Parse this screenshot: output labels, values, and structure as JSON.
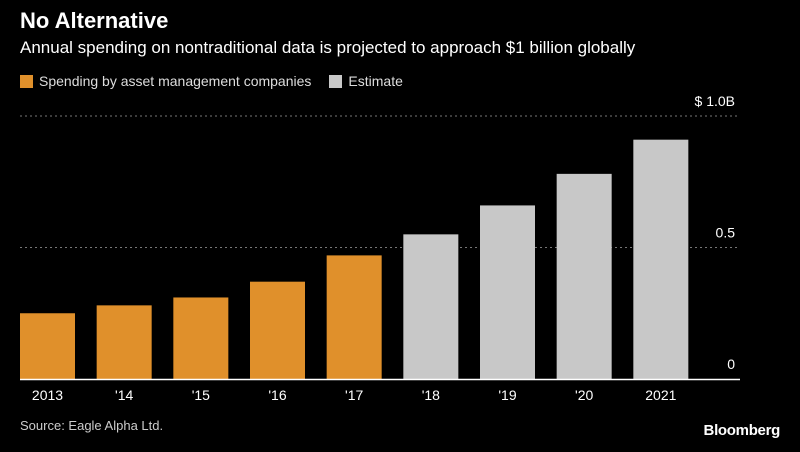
{
  "header": {
    "title": "No Alternative",
    "subtitle": "Annual spending on nontraditional data is projected to approach $1 billion globally"
  },
  "legend": [
    {
      "label": "Spending by asset management companies",
      "color": "#e0902b"
    },
    {
      "label": "Estimate",
      "color": "#c8c8c8"
    }
  ],
  "footer": {
    "source": "Source: Eagle Alpha Ltd.",
    "brand": "Bloomberg"
  },
  "chart_data": {
    "type": "bar",
    "categories": [
      "2013",
      "'14",
      "'15",
      "'16",
      "'17",
      "'18",
      "'19",
      "'20",
      "2021"
    ],
    "values": [
      0.25,
      0.28,
      0.31,
      0.37,
      0.47,
      0.55,
      0.66,
      0.78,
      0.91
    ],
    "estimate": [
      false,
      false,
      false,
      false,
      false,
      true,
      true,
      true,
      true
    ],
    "ylim": [
      0,
      1.0
    ],
    "yticks": [
      {
        "value": 0,
        "label": "0"
      },
      {
        "value": 0.5,
        "label": "0.5"
      },
      {
        "value": 1.0,
        "label": "$ 1.0B"
      }
    ],
    "colors": {
      "actual": "#e0902b",
      "estimate": "#c8c8c8",
      "grid": "#777777",
      "axis": "#ffffff"
    },
    "grid": true,
    "legend_position": "top-left"
  }
}
